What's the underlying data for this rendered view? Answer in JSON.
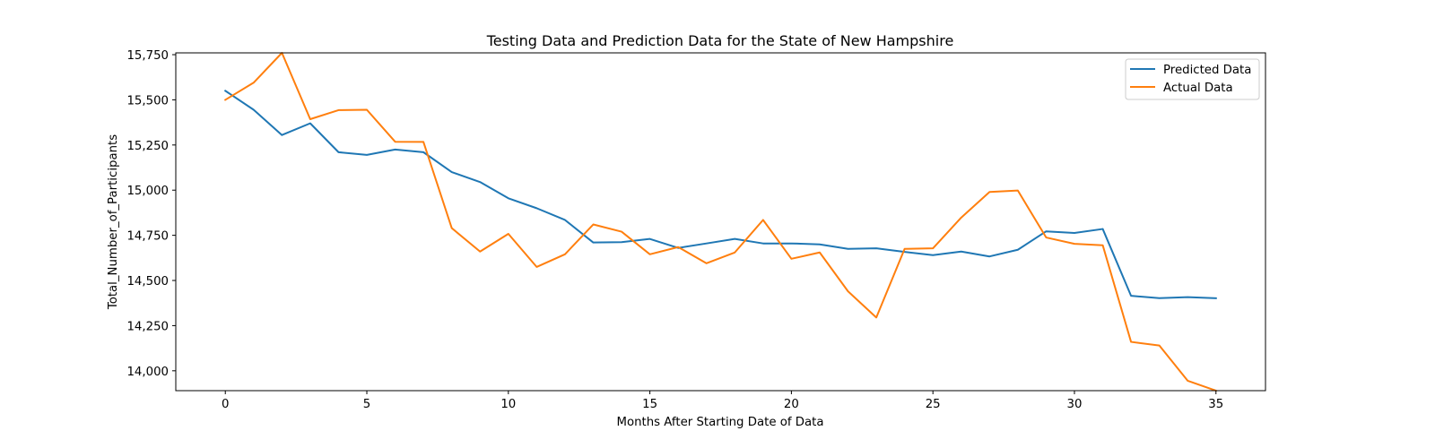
{
  "chart_data": {
    "type": "line",
    "title": "Testing Data and Prediction Data for the State of New Hampshire",
    "xlabel": "Months After Starting Date of Data",
    "ylabel": "Total_Number_of_Participants",
    "xlim": [
      -1.75,
      36.75
    ],
    "ylim": [
      13890,
      15760
    ],
    "x_ticks": [
      0,
      5,
      10,
      15,
      20,
      25,
      30,
      35
    ],
    "x_tick_labels": [
      "0",
      "5",
      "10",
      "15",
      "20",
      "25",
      "30",
      "35"
    ],
    "y_ticks": [
      14000,
      14250,
      14500,
      14750,
      15000,
      15250,
      15500,
      15750
    ],
    "y_tick_labels": [
      "14,000",
      "14,250",
      "14,500",
      "14,750",
      "15,000",
      "15,250",
      "15,500",
      "15,750"
    ],
    "grid": false,
    "legend_position": "top-right",
    "x": [
      0,
      1,
      2,
      3,
      4,
      5,
      6,
      7,
      8,
      9,
      10,
      11,
      12,
      13,
      14,
      15,
      16,
      17,
      18,
      19,
      20,
      21,
      22,
      23,
      24,
      25,
      26,
      27,
      28,
      29,
      30,
      31,
      32,
      33,
      34,
      35
    ],
    "series": [
      {
        "name": "Predicted Data",
        "color": "#1f77b4",
        "values": [
          15550,
          15445,
          15305,
          15370,
          15210,
          15195,
          15225,
          15210,
          15100,
          15045,
          14955,
          14900,
          14835,
          14710,
          14712,
          14730,
          14680,
          14705,
          14730,
          14705,
          14705,
          14700,
          14675,
          14678,
          14658,
          14640,
          14660,
          14633,
          14670,
          14772,
          14763,
          14785,
          14415,
          14402,
          14408,
          14402
        ]
      },
      {
        "name": "Actual Data",
        "color": "#ff7f0e",
        "values": [
          15500,
          15595,
          15760,
          15393,
          15443,
          15445,
          15268,
          15267,
          14790,
          14660,
          14758,
          14575,
          14645,
          14810,
          14770,
          14645,
          14685,
          14595,
          14655,
          14835,
          14620,
          14655,
          14440,
          14295,
          14675,
          14678,
          14848,
          14990,
          14998,
          14738,
          14703,
          14695,
          14160,
          14140,
          13945,
          13890
        ]
      }
    ]
  }
}
